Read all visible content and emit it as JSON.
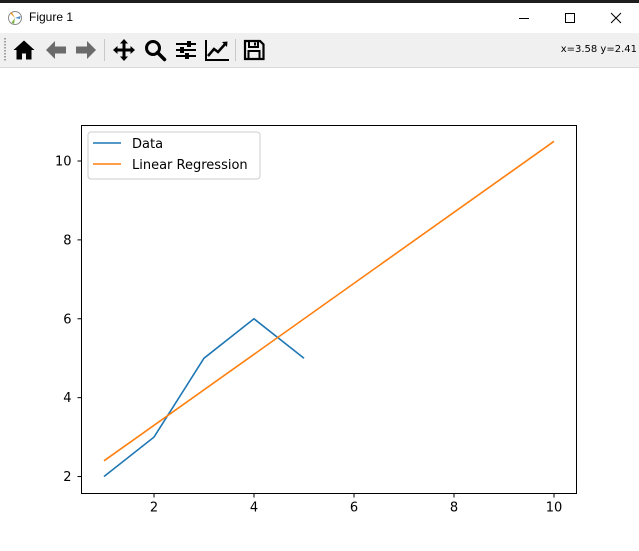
{
  "window": {
    "title": "Figure 1"
  },
  "toolbar": {
    "tools": [
      {
        "name": "home-icon"
      },
      {
        "name": "back-arrow-icon"
      },
      {
        "name": "forward-arrow-icon"
      },
      {
        "name": "pan-icon"
      },
      {
        "name": "zoom-icon"
      },
      {
        "name": "subplots-config-icon"
      },
      {
        "name": "edit-axes-icon"
      },
      {
        "name": "save-icon"
      }
    ],
    "coordinates": "x=3.58 y=2.41"
  },
  "colors": {
    "data_series": "#1f77b4",
    "regression_series": "#ff7f0e"
  },
  "chart_data": {
    "type": "line",
    "title": "",
    "xlabel": "",
    "ylabel": "",
    "xlim": [
      0.55,
      10.45
    ],
    "ylim": [
      1.57,
      10.9
    ],
    "xticks": [
      2,
      4,
      6,
      8,
      10
    ],
    "yticks": [
      2,
      4,
      6,
      8,
      10
    ],
    "legend": "top-left",
    "series": [
      {
        "name": "Data",
        "color": "#1f77b4",
        "x": [
          1,
          2,
          3,
          4,
          5
        ],
        "y": [
          2,
          3,
          5,
          6,
          5
        ]
      },
      {
        "name": "Linear Regression",
        "color": "#ff7f0e",
        "x": [
          1,
          10
        ],
        "y": [
          2.4,
          10.5
        ]
      }
    ]
  }
}
